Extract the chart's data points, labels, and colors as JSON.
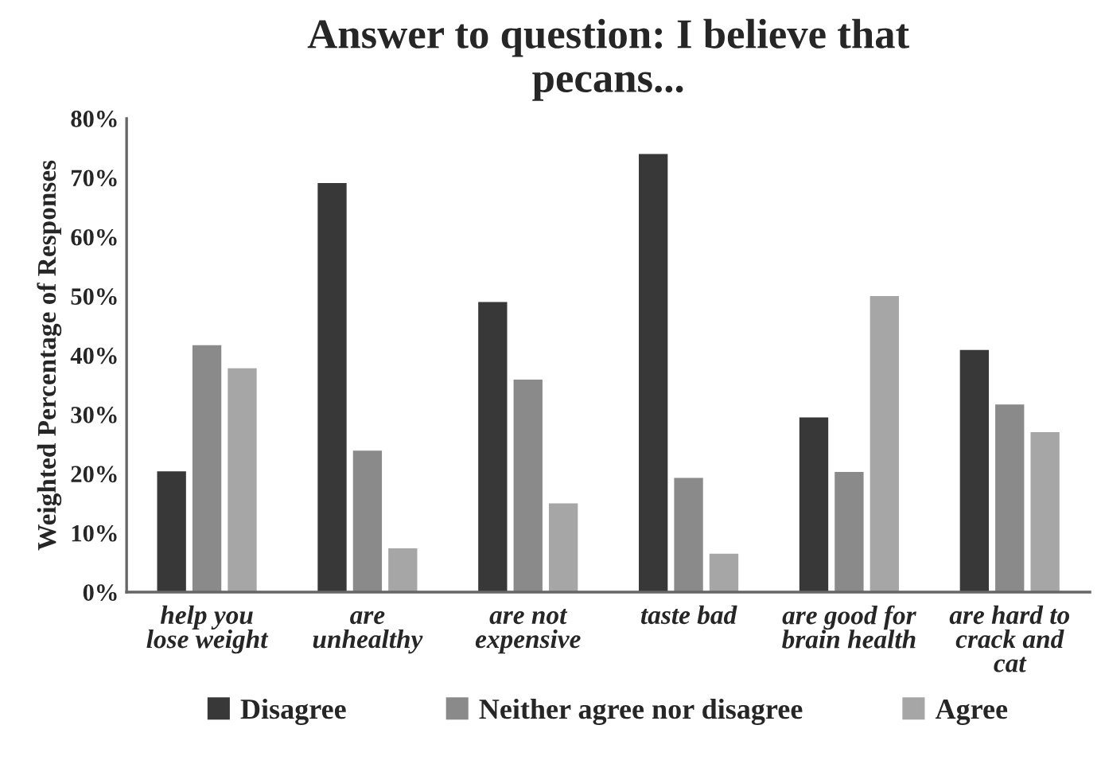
{
  "chart_data": {
    "type": "bar",
    "title": "Answer to question: I believe that\npecans...",
    "ylabel": "Weighted Percentage of Responses",
    "categories": [
      "help you\nlose weight",
      "are\nunhealthy",
      "are not\nexpensive",
      "taste bad",
      "are good for\nbrain health",
      "are hard to\ncrack and\ncat"
    ],
    "series": [
      {
        "name": "Disagree",
        "color": "#383838",
        "values": [
          20.4,
          69.1,
          49.0,
          74.0,
          29.5,
          40.9
        ]
      },
      {
        "name": "Neither agree nor disagree",
        "color": "#8a8a8a",
        "values": [
          41.7,
          23.9,
          35.9,
          19.3,
          20.3,
          31.7
        ]
      },
      {
        "name": "Agree",
        "color": "#a6a6a6",
        "values": [
          37.8,
          7.4,
          15.0,
          6.5,
          50.0,
          27.0
        ]
      }
    ],
    "ylim": [
      0,
      80
    ],
    "yticks": [
      {
        "value": 0,
        "label": "0%"
      },
      {
        "value": 10,
        "label": "10%"
      },
      {
        "value": 20,
        "label": "20%"
      },
      {
        "value": 30,
        "label": "30%"
      },
      {
        "value": 40,
        "label": "40%"
      },
      {
        "value": 50,
        "label": "50%"
      },
      {
        "value": 60,
        "label": "60%"
      },
      {
        "value": 70,
        "label": "70%"
      },
      {
        "value": 80,
        "label": "80%"
      }
    ],
    "grid": false,
    "legend": "bottom"
  }
}
